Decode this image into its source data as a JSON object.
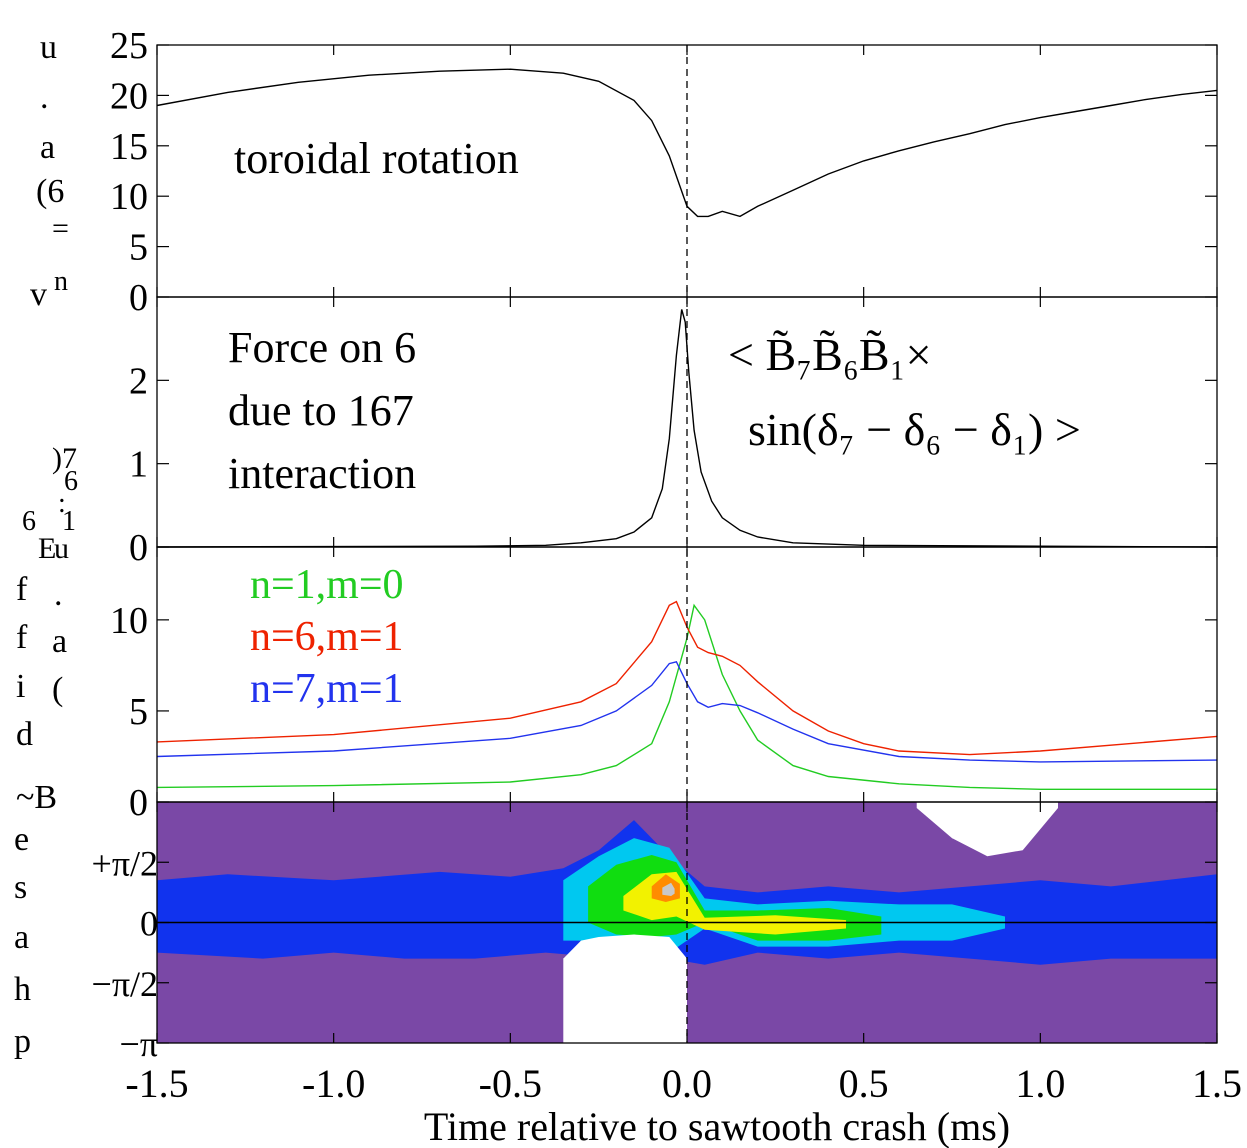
{
  "figure": {
    "xaxis": {
      "label": "Time relative to sawtooth crash (ms)",
      "ticks": [
        "-1.5",
        "-1.0",
        "-0.5",
        "0.0",
        "0.5",
        "1.0",
        "1.5"
      ]
    },
    "ylabel_fragments": {
      "rotation": [
        "u",
        ".",
        "a",
        "(6",
        "=",
        "v",
        "n"
      ],
      "force": [
        ")7",
        "6",
        ":",
        "6",
        "1",
        "E",
        "u"
      ],
      "amplitude": [
        "f",
        "f",
        "i",
        "d",
        "~B",
        ".",
        "a",
        "("
      ],
      "phase": [
        "e",
        "s",
        "a",
        "h",
        "p"
      ]
    }
  },
  "chart_data": [
    {
      "type": "line",
      "panel": "toroidal-rotation",
      "annotation": "toroidal rotation",
      "xlim": [
        -1.5,
        1.5
      ],
      "ylim": [
        0,
        25
      ],
      "yticks": [
        "0",
        "5",
        "10",
        "15",
        "20",
        "25"
      ],
      "series": [
        {
          "color": "#000000",
          "x": [
            -1.5,
            -1.3,
            -1.1,
            -0.9,
            -0.7,
            -0.5,
            -0.35,
            -0.25,
            -0.15,
            -0.1,
            -0.05,
            -0.02,
            0.0,
            0.03,
            0.06,
            0.1,
            0.15,
            0.2,
            0.3,
            0.4,
            0.5,
            0.6,
            0.7,
            0.8,
            0.9,
            1.0,
            1.1,
            1.2,
            1.3,
            1.4,
            1.5
          ],
          "y": [
            19.0,
            20.3,
            21.3,
            22.0,
            22.4,
            22.6,
            22.2,
            21.4,
            19.5,
            17.5,
            14.0,
            11.0,
            9.0,
            8.0,
            8.0,
            8.5,
            8.0,
            9.0,
            10.6,
            12.2,
            13.5,
            14.5,
            15.4,
            16.2,
            17.1,
            17.8,
            18.4,
            19.0,
            19.6,
            20.1,
            20.5
          ]
        }
      ]
    },
    {
      "type": "line",
      "panel": "force",
      "annotation": [
        "Force on 6",
        "due to 167",
        "interaction"
      ],
      "formula": {
        "line1": "< B̃₇B̃₆B̃₁×",
        "line2": "sin(δ₇ − δ₆ − δ₁) >"
      },
      "xlim": [
        -1.5,
        1.5
      ],
      "ylim": [
        0,
        3
      ],
      "yticks": [
        "0",
        "1",
        "2"
      ],
      "series": [
        {
          "color": "#000000",
          "x": [
            -1.5,
            -0.6,
            -0.4,
            -0.3,
            -0.2,
            -0.15,
            -0.1,
            -0.07,
            -0.05,
            -0.03,
            -0.015,
            -0.005,
            0.005,
            0.02,
            0.04,
            0.07,
            0.1,
            0.15,
            0.2,
            0.3,
            0.5,
            1.0,
            1.5
          ],
          "y": [
            0.0,
            0.01,
            0.02,
            0.05,
            0.1,
            0.18,
            0.35,
            0.7,
            1.3,
            2.3,
            2.85,
            2.7,
            2.1,
            1.4,
            0.9,
            0.55,
            0.35,
            0.2,
            0.12,
            0.05,
            0.02,
            0.01,
            0.0
          ]
        }
      ]
    },
    {
      "type": "line",
      "panel": "mode-amplitudes",
      "xlim": [
        -1.5,
        1.5
      ],
      "ylim": [
        0,
        14
      ],
      "yticks": [
        "0",
        "5",
        "10"
      ],
      "series": [
        {
          "name": "n=1,m=0",
          "color": "#22cc22",
          "x": [
            -1.5,
            -1.0,
            -0.5,
            -0.3,
            -0.2,
            -0.1,
            -0.05,
            0.0,
            0.02,
            0.05,
            0.1,
            0.15,
            0.2,
            0.3,
            0.4,
            0.6,
            0.8,
            1.0,
            1.5
          ],
          "y": [
            0.8,
            0.9,
            1.1,
            1.5,
            2.0,
            3.2,
            5.5,
            9.0,
            10.8,
            10.0,
            7.0,
            5.0,
            3.4,
            2.0,
            1.4,
            1.0,
            0.8,
            0.7,
            0.7
          ]
        },
        {
          "name": "n=6,m=1",
          "color": "#ee2200",
          "x": [
            -1.5,
            -1.0,
            -0.5,
            -0.3,
            -0.2,
            -0.1,
            -0.05,
            -0.03,
            0.0,
            0.03,
            0.06,
            0.1,
            0.15,
            0.2,
            0.3,
            0.4,
            0.5,
            0.6,
            0.8,
            1.0,
            1.5
          ],
          "y": [
            3.3,
            3.7,
            4.6,
            5.5,
            6.5,
            8.8,
            10.8,
            11.0,
            9.6,
            8.5,
            8.2,
            8.0,
            7.5,
            6.6,
            5.0,
            3.9,
            3.2,
            2.8,
            2.6,
            2.8,
            3.6
          ]
        },
        {
          "name": "n=7,m=1",
          "color": "#2233ee",
          "x": [
            -1.5,
            -1.0,
            -0.5,
            -0.3,
            -0.2,
            -0.1,
            -0.05,
            -0.03,
            0.0,
            0.03,
            0.06,
            0.1,
            0.15,
            0.2,
            0.3,
            0.4,
            0.6,
            0.8,
            1.0,
            1.5
          ],
          "y": [
            2.5,
            2.8,
            3.5,
            4.2,
            5.0,
            6.4,
            7.6,
            7.7,
            6.5,
            5.5,
            5.2,
            5.4,
            5.3,
            4.9,
            4.0,
            3.2,
            2.5,
            2.3,
            2.2,
            2.3
          ]
        }
      ]
    },
    {
      "type": "heatmap",
      "panel": "phase",
      "xlim": [
        -1.5,
        1.5
      ],
      "ylim": [
        "−π",
        "+π"
      ],
      "yticks": [
        "−π",
        "−π/2",
        "0",
        "+π/2"
      ],
      "colors": [
        "#7a48a6",
        "#1133ee",
        "#00c8f0",
        "#10dd10",
        "#f2f200",
        "#ff8c00",
        "#c8c8c8"
      ],
      "background_color": "#ffffff",
      "contours": [
        {
          "color": "#1133ee",
          "x": [
            -1.5,
            -1.3,
            -1.0,
            -0.7,
            -0.5,
            -0.35,
            -0.25,
            -0.15,
            -0.05,
            0.05,
            0.2,
            0.4,
            0.6,
            0.8,
            1.0,
            1.2,
            1.5,
            1.5,
            1.2,
            1.0,
            0.8,
            0.6,
            0.4,
            0.2,
            0.05,
            -0.05,
            -0.2,
            -0.4,
            -0.6,
            -0.8,
            -1.0,
            -1.2,
            -1.5
          ],
          "phase_hi": [
            0.35,
            0.4,
            0.35,
            0.42,
            0.38,
            0.45,
            0.6,
            0.85,
            0.55,
            0.3,
            0.25,
            0.3,
            0.25,
            0.3,
            0.35,
            0.3,
            0.4
          ],
          "phase_lo": [
            -0.3,
            -0.25,
            -0.3,
            -0.25,
            -0.3,
            -0.3,
            -0.25,
            -0.3,
            -0.3,
            -0.35,
            -0.25,
            -0.3,
            -0.25,
            -0.3,
            -0.35,
            -0.3,
            -0.3
          ]
        },
        {
          "color": "#00c8f0",
          "x": [
            -0.35,
            -0.25,
            -0.15,
            -0.05,
            0.05,
            0.2,
            0.4,
            0.6,
            0.75,
            0.9,
            0.9,
            0.75,
            0.6,
            0.4,
            0.2,
            0.05,
            -0.05,
            -0.15,
            -0.25,
            -0.35
          ],
          "phase_hi": [
            0.35,
            0.55,
            0.7,
            0.62,
            0.2,
            0.15,
            0.18,
            0.15,
            0.15,
            0.05
          ],
          "phase_lo": [
            -0.15,
            -0.15,
            -0.25,
            -0.25,
            -0.05,
            -0.2,
            -0.2,
            -0.15,
            -0.15,
            -0.05
          ]
        },
        {
          "color": "#10dd10",
          "x": [
            -0.28,
            -0.2,
            -0.1,
            -0.03,
            0.05,
            0.2,
            0.4,
            0.55,
            0.55,
            0.4,
            0.2,
            0.05,
            -0.03,
            -0.1,
            -0.2,
            -0.28
          ],
          "phase_hi": [
            0.3,
            0.48,
            0.56,
            0.5,
            0.1,
            0.1,
            0.12,
            0.05
          ],
          "phase_lo": [
            0.0,
            -0.1,
            -0.12,
            -0.1,
            0.0,
            -0.15,
            -0.15,
            -0.1
          ]
        },
        {
          "color": "#f2f200",
          "x": [
            -0.18,
            -0.1,
            -0.03,
            0.05,
            0.25,
            0.45,
            0.45,
            0.25,
            0.05,
            -0.03,
            -0.1,
            -0.18
          ],
          "phase_hi": [
            0.22,
            0.4,
            0.42,
            0.04,
            0.06,
            0.02
          ],
          "phase_lo": [
            0.1,
            0.02,
            0.05,
            -0.06,
            -0.1,
            -0.05
          ]
        },
        {
          "color": "#ff8c00",
          "x": [
            -0.1,
            -0.06,
            -0.02,
            -0.02,
            -0.06,
            -0.1
          ],
          "phase_hi": [
            0.3,
            0.4,
            0.32
          ],
          "phase_lo": [
            0.2,
            0.17,
            0.2
          ]
        },
        {
          "color": "#c8c8c8",
          "x": [
            -0.07,
            -0.045,
            -0.035,
            -0.035,
            -0.045,
            -0.07
          ],
          "phase_hi": [
            0.29,
            0.33,
            0.28
          ],
          "phase_lo": [
            0.23,
            0.22,
            0.24
          ]
        }
      ],
      "blank_region_x": [
        -0.35,
        -0.3,
        -0.25,
        -0.15,
        -0.05,
        0.0
      ],
      "blank_region_phase_top": [
        -0.3,
        -0.15,
        -0.12,
        -0.1,
        -0.12,
        -0.3
      ],
      "upper_blank_x": [
        0.65,
        0.75,
        0.85,
        0.95,
        1.05
      ],
      "upper_blank_phase_bottom": [
        0.95,
        0.7,
        0.55,
        0.6,
        0.95
      ],
      "zero_line": true
    }
  ]
}
